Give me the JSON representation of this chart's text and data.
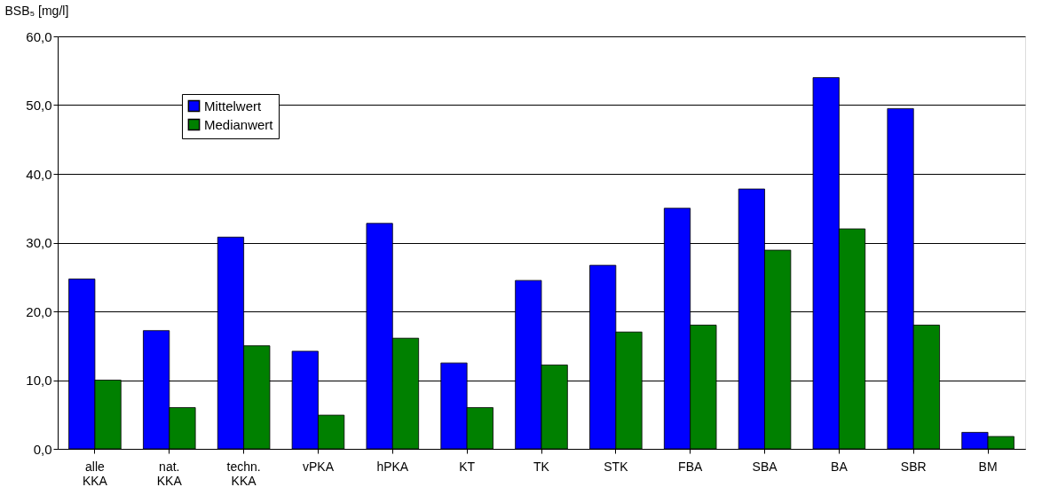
{
  "chart_data": {
    "type": "bar",
    "ylabel": "BSB₅ [mg/l]",
    "categories": [
      "alle KKA",
      "nat. KKA",
      "techn. KKA",
      "vPKA",
      "hPKA",
      "KT",
      "TK",
      "STK",
      "FBA",
      "SBA",
      "BA",
      "SBR",
      "BM"
    ],
    "series": [
      {
        "name": "Mittelwert",
        "color": "#0000ff",
        "values": [
          24.7,
          17.2,
          30.8,
          14.2,
          32.8,
          12.5,
          24.5,
          26.7,
          35.0,
          37.8,
          54.0,
          49.5,
          2.4
        ]
      },
      {
        "name": "Medianwert",
        "color": "#008000",
        "values": [
          10.0,
          6.0,
          15.0,
          4.9,
          16.1,
          6.0,
          12.2,
          17.0,
          18.0,
          28.9,
          32.0,
          18.0,
          1.8
        ]
      }
    ],
    "ylim": [
      0,
      60
    ],
    "yticks": [
      {
        "value": 0,
        "label": "0,0"
      },
      {
        "value": 10,
        "label": "10,0"
      },
      {
        "value": 20,
        "label": "20,0"
      },
      {
        "value": 30,
        "label": "30,0"
      },
      {
        "value": 40,
        "label": "40,0"
      },
      {
        "value": 50,
        "label": "50,0"
      },
      {
        "value": 60,
        "label": "60,0"
      }
    ],
    "grid": "y",
    "legend": "top left"
  }
}
